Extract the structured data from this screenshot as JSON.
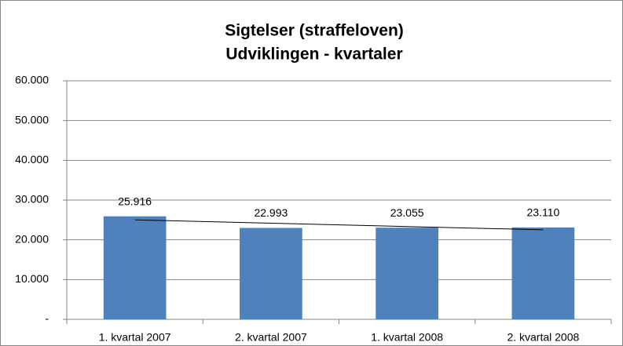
{
  "chart_data": {
    "type": "bar",
    "title": [
      "Sigtelser (straffeloven)",
      "Udviklingen - kvartaler"
    ],
    "categories": [
      "1. kvartal 2007",
      "2. kvartal 2007",
      "1. kvartal 2008",
      "2. kvartal 2008"
    ],
    "values": [
      25916,
      22993,
      23055,
      23110
    ],
    "value_labels": [
      "25.916",
      "22.993",
      "23.055",
      "23.110"
    ],
    "color": "#4f81bd",
    "trendline": "linear",
    "ylim": [
      0,
      60000
    ],
    "yticks": [
      {
        "value": 0,
        "label": "-"
      },
      {
        "value": 10000,
        "label": "10.000"
      },
      {
        "value": 20000,
        "label": "20.000"
      },
      {
        "value": 30000,
        "label": "30.000"
      },
      {
        "value": 40000,
        "label": "40.000"
      },
      {
        "value": 50000,
        "label": "50.000"
      },
      {
        "value": 60000,
        "label": "60.000"
      }
    ],
    "grid": true
  }
}
